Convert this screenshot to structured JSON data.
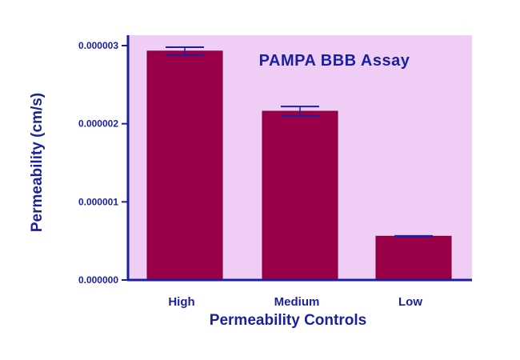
{
  "chart_data": {
    "type": "bar",
    "title": "PAMPA BBB Assay",
    "xlabel": "Permeability Controls",
    "ylabel": "Permeability (cm/s)",
    "categories": [
      "High",
      "Medium",
      "Low"
    ],
    "values": [
      2.93e-06,
      2.16e-06,
      5.6e-07
    ],
    "errors": [
      5e-08,
      6e-08,
      5e-09
    ],
    "ylim": [
      0,
      3e-06
    ],
    "yticks": [
      0,
      1e-06,
      2e-06,
      3e-06
    ],
    "ytick_labels": [
      "0.000000",
      "0.000001",
      "0.000002",
      "0.000003"
    ],
    "grid": false,
    "legend": "none",
    "colors": {
      "plot_background": "#efcdf5",
      "bar_fill": "#990047",
      "bar_edge": "#7a0038",
      "axis": "#1a1f9e",
      "text": "#1a1f9e",
      "error_bar": "#1a1f9e"
    }
  }
}
